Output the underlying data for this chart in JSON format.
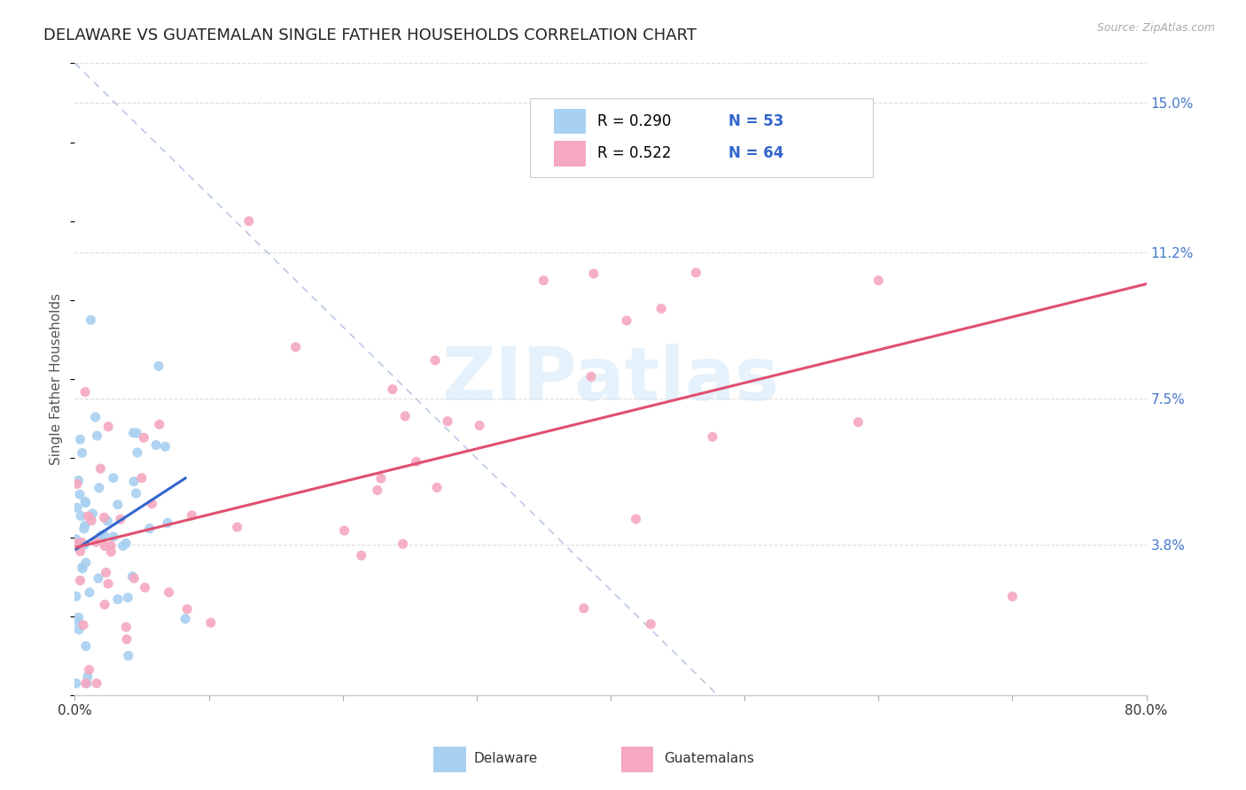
{
  "title": "DELAWARE VS GUATEMALAN SINGLE FATHER HOUSEHOLDS CORRELATION CHART",
  "source": "Source: ZipAtlas.com",
  "ylabel": "Single Father Households",
  "xlim": [
    0.0,
    0.8
  ],
  "ylim": [
    0.0,
    0.16
  ],
  "ytick_labels_right": [
    "3.8%",
    "7.5%",
    "11.2%",
    "15.0%"
  ],
  "ytick_vals_right": [
    0.038,
    0.075,
    0.112,
    0.15
  ],
  "delaware_color": "#a8d0f0",
  "guatemalan_color": "#f5a8c0",
  "delaware_line_color": "#3366cc",
  "guatemalan_line_color": "#e05070",
  "dashed_line_color": "#aabbdd",
  "watermark": "ZIPatlas",
  "background_color": "#ffffff",
  "grid_color": "#dddddd",
  "title_color": "#222222",
  "title_fontsize": 13,
  "source_color": "#aaaaaa",
  "ylabel_color": "#555555",
  "right_tick_color": "#4477cc",
  "legend_r_color": "#000000",
  "legend_n_color": "#3366cc"
}
